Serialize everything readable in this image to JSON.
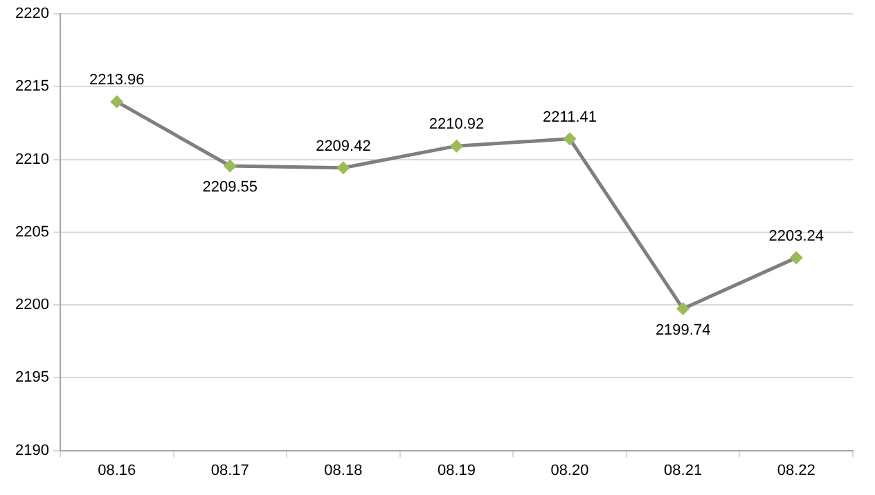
{
  "chart_data": {
    "type": "line",
    "categories": [
      "08.16",
      "08.17",
      "08.18",
      "08.19",
      "08.20",
      "08.21",
      "08.22"
    ],
    "series": [
      {
        "color": "#7f7f7f",
        "values": [
          2213.96,
          2209.55,
          2209.42,
          2210.92,
          2211.41,
          2199.74,
          2203.24
        ]
      }
    ],
    "ylim": [
      2190,
      2220
    ],
    "yticks": [
      2190,
      2195,
      2200,
      2205,
      2210,
      2215,
      2220
    ],
    "grid": "y",
    "legend": false,
    "marker": "diamond",
    "data_labels": true,
    "line_style": "solid"
  }
}
